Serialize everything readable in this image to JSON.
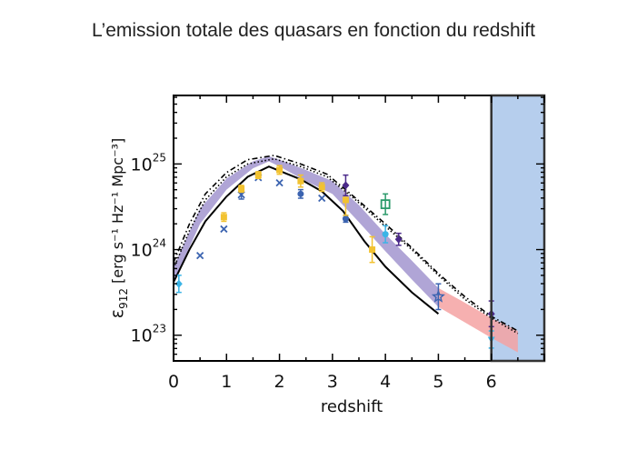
{
  "slide": {
    "title": "L’emission totale des quasars en fonction du redshift"
  },
  "chart_data": {
    "type": "scatter",
    "xlabel": "redshift",
    "ylabel": "ε912  [erg s⁻¹ Hz⁻¹ Mpc⁻³]",
    "ylabel_parts": {
      "sym": "ε",
      "sub": "912",
      "units": "[erg s⁻¹ Hz⁻¹ Mpc⁻³]"
    },
    "xlim": [
      0,
      7
    ],
    "ylog_lim": [
      22.7,
      25.8
    ],
    "xticks": [
      0,
      1,
      2,
      3,
      4,
      5,
      6
    ],
    "yticks": [
      {
        "log": 23,
        "base": "10",
        "exp": "23"
      },
      {
        "log": 24,
        "base": "10",
        "exp": "24"
      },
      {
        "log": 25,
        "base": "10",
        "exp": "25"
      }
    ],
    "scale": "log-y",
    "colors": {
      "band": "#a79bd2",
      "extrapolation": "#f4a2a2",
      "highlight": "#a9c6ea",
      "highlight_border": "#555555",
      "cyan": "#3bb4e6",
      "yellow": "#f2c230",
      "blue": "#3b63b0",
      "purple": "#4b2a8a",
      "green": "#2a9a6a"
    },
    "highlight_region": {
      "x_from": 6,
      "x_to": 7
    },
    "band": {
      "x": [
        0.0,
        0.5,
        1.0,
        1.5,
        1.8,
        2.0,
        2.5,
        3.0,
        3.5,
        4.0,
        4.5,
        5.0
      ],
      "lower": [
        23.62,
        24.3,
        24.7,
        24.95,
        25.03,
        24.97,
        24.8,
        24.65,
        24.32,
        23.98,
        23.65,
        23.33
      ],
      "upper": [
        23.8,
        24.48,
        24.83,
        25.03,
        25.09,
        25.05,
        24.93,
        24.8,
        24.52,
        24.18,
        23.87,
        23.55
      ]
    },
    "extrapolation": {
      "x": [
        5.0,
        5.5,
        6.0,
        6.5
      ],
      "lower": [
        23.33,
        23.15,
        22.97,
        22.8
      ],
      "upper": [
        23.55,
        23.38,
        23.2,
        23.05
      ]
    },
    "series": [
      {
        "style": "solid",
        "x": [
          0.0,
          0.3,
          0.6,
          1.0,
          1.4,
          1.8,
          2.0,
          2.4,
          2.8,
          3.2,
          3.6,
          4.0,
          4.5,
          5.0
        ],
        "y": [
          23.62,
          24.0,
          24.33,
          24.62,
          24.85,
          24.97,
          24.92,
          24.82,
          24.68,
          24.45,
          24.1,
          23.8,
          23.5,
          23.25
        ]
      },
      {
        "style": "dashdot",
        "x": [
          0.0,
          0.3,
          0.6,
          1.0,
          1.4,
          1.9,
          2.4,
          2.9,
          3.4,
          4.0,
          4.5,
          5.0,
          5.5,
          6.0,
          6.5
        ],
        "y": [
          23.85,
          24.3,
          24.65,
          24.9,
          25.05,
          25.1,
          25.0,
          24.88,
          24.62,
          24.3,
          24.02,
          23.72,
          23.45,
          23.22,
          23.05
        ]
      },
      {
        "style": "dotted",
        "x": [
          0.0,
          0.3,
          0.6,
          1.0,
          1.4,
          1.9,
          2.4,
          2.9,
          3.4,
          4.0,
          4.5,
          5.0,
          5.5,
          6.0,
          6.5
        ],
        "y": [
          23.78,
          24.22,
          24.58,
          24.85,
          25.0,
          25.06,
          24.97,
          24.85,
          24.6,
          24.27,
          24.0,
          23.7,
          23.42,
          23.2,
          23.02
        ]
      }
    ],
    "points": [
      {
        "x": 0.1,
        "y": 23.6,
        "err": 0.1,
        "marker": "diamond",
        "color": "cyan"
      },
      {
        "x": 0.5,
        "y": 23.93,
        "err": 0,
        "marker": "cross",
        "color": "blue"
      },
      {
        "x": 0.95,
        "y": 24.24,
        "err": 0,
        "marker": "cross",
        "color": "blue"
      },
      {
        "x": 0.95,
        "y": 24.38,
        "err": 0.05,
        "marker": "square",
        "color": "yellow"
      },
      {
        "x": 1.28,
        "y": 24.64,
        "err": 0.05,
        "marker": "cross",
        "color": "blue"
      },
      {
        "x": 1.28,
        "y": 24.71,
        "err": 0.04,
        "marker": "square",
        "color": "yellow"
      },
      {
        "x": 1.6,
        "y": 24.84,
        "err": 0,
        "marker": "cross",
        "color": "blue"
      },
      {
        "x": 1.6,
        "y": 24.87,
        "err": 0.04,
        "marker": "square",
        "color": "yellow"
      },
      {
        "x": 2.0,
        "y": 24.78,
        "err": 0,
        "marker": "cross",
        "color": "blue"
      },
      {
        "x": 2.0,
        "y": 24.93,
        "err": 0.05,
        "marker": "square",
        "color": "yellow"
      },
      {
        "x": 2.4,
        "y": 24.65,
        "err": 0.05,
        "marker": "circle",
        "color": "blue"
      },
      {
        "x": 2.4,
        "y": 24.8,
        "err": 0.07,
        "marker": "square",
        "color": "yellow"
      },
      {
        "x": 2.8,
        "y": 24.6,
        "err": 0,
        "marker": "cross",
        "color": "blue"
      },
      {
        "x": 2.8,
        "y": 24.73,
        "err": 0.05,
        "marker": "square",
        "color": "yellow"
      },
      {
        "x": 3.25,
        "y": 24.36,
        "err": 0.04,
        "marker": "circle",
        "color": "blue"
      },
      {
        "x": 3.25,
        "y": 24.58,
        "err": 0.18,
        "marker": "square",
        "color": "yellow"
      },
      {
        "x": 3.25,
        "y": 24.75,
        "err": 0.12,
        "marker": "diamond",
        "color": "purple"
      },
      {
        "x": 3.75,
        "y": 24.0,
        "err": 0.15,
        "marker": "square",
        "color": "yellow"
      },
      {
        "x": 4.0,
        "y": 24.53,
        "err": 0.12,
        "marker": "square-open",
        "color": "green"
      },
      {
        "x": 4.0,
        "y": 24.18,
        "err": 0.1,
        "marker": "circle",
        "color": "cyan"
      },
      {
        "x": 4.25,
        "y": 24.12,
        "err": 0.07,
        "marker": "diamond",
        "color": "purple"
      },
      {
        "x": 5.0,
        "y": 23.45,
        "err": 0.15,
        "marker": "star",
        "color": "blue"
      },
      {
        "x": 6.0,
        "y": 23.25,
        "err": 0.15,
        "marker": "diamond",
        "color": "purple"
      },
      {
        "x": 6.0,
        "y": 22.95,
        "err": 0.1,
        "marker": "triangle-down",
        "color": "cyan"
      }
    ]
  }
}
